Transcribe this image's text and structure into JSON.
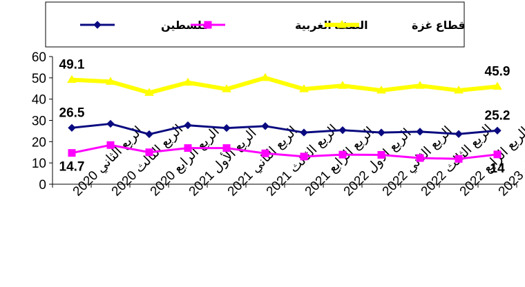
{
  "chart_data": {
    "type": "line",
    "categories": [
      "الربع الثاني 2020",
      "الربع الثالث 2020",
      "الربع الرابع 2020",
      "الربع الأول 2021",
      "الربع الثاني 2021",
      "الربع الثالث 2021",
      "الربع الرابع 2021",
      "الربع الاول 2022",
      "الربع الثاني 2022",
      "الربع الثالث 2022",
      "الربع الرابع 2022",
      "الربع الأول 2023"
    ],
    "series": [
      {
        "name": "فلسطين",
        "color": "#0a0a80",
        "marker": "diamond",
        "values": [
          26.5,
          28.4,
          23.5,
          27.7,
          26.4,
          27.3,
          24.3,
          25.4,
          24.3,
          24.7,
          23.6,
          25.2
        ]
      },
      {
        "name": "الضفة الغربية",
        "color": "#ff00ff",
        "marker": "square",
        "values": [
          14.7,
          18.4,
          15.0,
          17.0,
          17.0,
          14.5,
          13.0,
          13.9,
          13.8,
          12.3,
          11.9,
          14.0
        ]
      },
      {
        "name": "قطاع غزة",
        "color": "#ffff00",
        "marker": "triangle",
        "values": [
          49.1,
          48.2,
          43.0,
          47.8,
          44.7,
          50.0,
          44.7,
          46.3,
          44.1,
          46.3,
          44.1,
          45.9
        ]
      }
    ],
    "data_labels": [
      {
        "series": 2,
        "index": 0,
        "text": "49.1",
        "pos": "above"
      },
      {
        "series": 2,
        "index": 11,
        "text": "45.9",
        "pos": "above"
      },
      {
        "series": 0,
        "index": 0,
        "text": "26.5",
        "pos": "above"
      },
      {
        "series": 0,
        "index": 11,
        "text": "25.2",
        "pos": "above"
      },
      {
        "series": 1,
        "index": 0,
        "text": "14.7",
        "pos": "below"
      },
      {
        "series": 1,
        "index": 11,
        "text": "14",
        "pos": "below"
      }
    ],
    "y_ticks": [
      "0",
      "10",
      "20",
      "30",
      "40",
      "50",
      "60"
    ],
    "ylim": [
      0,
      60
    ],
    "grid": false,
    "legend_position": "top"
  }
}
